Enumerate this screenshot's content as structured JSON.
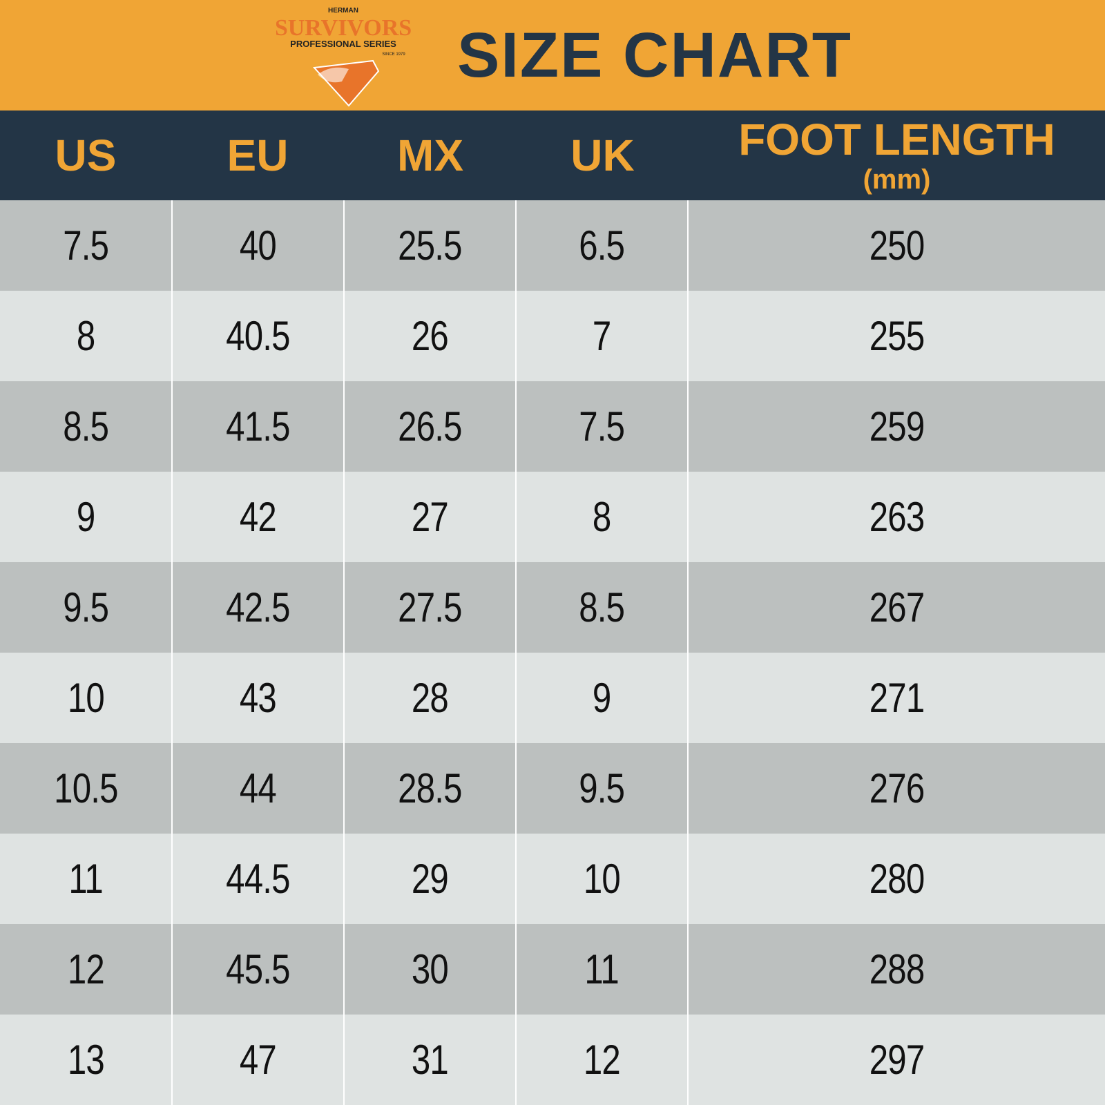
{
  "header": {
    "brand": "HERMAN",
    "logo": "SURVIVORS",
    "series": "PROFESSIONAL SERIES",
    "since": "SINCE 1979",
    "title": "SIZE CHART"
  },
  "table": {
    "columns": [
      "US",
      "EU",
      "MX",
      "UK",
      "FOOT LENGTH"
    ],
    "unit": "(mm)",
    "rows": [
      [
        "7.5",
        "40",
        "25.5",
        "6.5",
        "250"
      ],
      [
        "8",
        "40.5",
        "26",
        "7",
        "255"
      ],
      [
        "8.5",
        "41.5",
        "26.5",
        "7.5",
        "259"
      ],
      [
        "9",
        "42",
        "27",
        "8",
        "263"
      ],
      [
        "9.5",
        "42.5",
        "27.5",
        "8.5",
        "267"
      ],
      [
        "10",
        "43",
        "28",
        "9",
        "271"
      ],
      [
        "10.5",
        "44",
        "28.5",
        "9.5",
        "276"
      ],
      [
        "11",
        "44.5",
        "29",
        "10",
        "280"
      ],
      [
        "12",
        "45.5",
        "30",
        "11",
        "288"
      ],
      [
        "13",
        "47",
        "31",
        "12",
        "297"
      ]
    ]
  }
}
